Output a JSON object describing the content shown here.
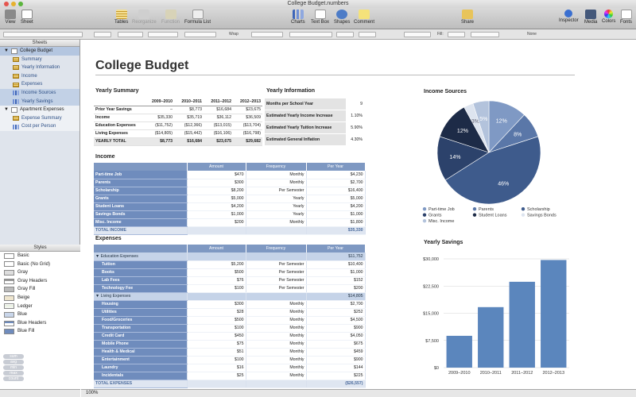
{
  "window": {
    "title": "College Budget.numbers"
  },
  "toolbar": {
    "view": "View",
    "sheet": "Sheet",
    "tables": "Tables",
    "reorganize": "Reorganize",
    "function": "Function",
    "formula_list": "Formula List",
    "charts": "Charts",
    "text_box": "Text Box",
    "shapes": "Shapes",
    "comment": "Comment",
    "share": "Share",
    "inspector": "Inspector",
    "media": "Media",
    "colors": "Colors",
    "fonts": "Fonts"
  },
  "formatbar": {
    "wrap": "Wrap",
    "fill": "Fill:",
    "none": "None"
  },
  "sidebar": {
    "sheets_header": "Sheets",
    "sheets": [
      {
        "label": "College Budget",
        "items": [
          "Summary",
          "Yearly Information",
          "Income",
          "Expenses",
          "Income Sources",
          "Yearly Savings"
        ]
      },
      {
        "label": "Apartment Expenses",
        "items": [
          "Expense Summary",
          "Cost per Person"
        ]
      }
    ],
    "styles_header": "Styles",
    "styles": [
      "Basic",
      "Basic (No Grid)",
      "Gray",
      "Gray Headers",
      "Gray Fill",
      "Beige",
      "Ledger",
      "Blue",
      "Blue Headers",
      "Blue Fill"
    ],
    "quick_calc": [
      "sum",
      "avg",
      "min",
      "max",
      "count"
    ],
    "zoom": "100%"
  },
  "colors": {
    "accent_blue": "#7e98c2",
    "dark_blue": "#1f3156",
    "selection": "#b4c6e0"
  },
  "page": {
    "title": "College Budget"
  },
  "yearly_summary": {
    "title": "Yearly Summary",
    "headers": [
      "",
      "2009–2010",
      "2010–2011",
      "2011–2012",
      "2012–2013"
    ],
    "rows": [
      [
        "Prior Year Savings",
        "–",
        "$8,773",
        "$16,684",
        "$23,675"
      ],
      [
        "Income",
        "$35,330",
        "$35,719",
        "$36,112",
        "$36,509"
      ],
      [
        "Education Expenses",
        "($11,752)",
        "($12,366)",
        "($13,015)",
        "($13,704)"
      ],
      [
        "Living Expenses",
        "($14,805)",
        "($15,442)",
        "($16,106)",
        "($16,798)"
      ]
    ],
    "total": [
      "YEARLY TOTAL",
      "$8,773",
      "$16,684",
      "$23,675",
      "$29,682"
    ]
  },
  "yearly_information": {
    "title": "Yearly Information",
    "rows": [
      [
        "Months per School Year",
        "9"
      ],
      [
        "Estimated Yearly Income Increase",
        "1.10%"
      ],
      [
        "Estimated Yearly Tuition Increase",
        "5.90%"
      ],
      [
        "Estimated General Inflation",
        "4.30%"
      ]
    ]
  },
  "income": {
    "title": "Income",
    "headers": [
      "",
      "Amount",
      "Frequency",
      "Per Year"
    ],
    "rows": [
      [
        "Part-time Job",
        "$470",
        "Monthly",
        "$4,230"
      ],
      [
        "Parents",
        "$300",
        "Monthly",
        "$2,700"
      ],
      [
        "Scholarship",
        "$8,200",
        "Per Semester",
        "$16,400"
      ],
      [
        "Grants",
        "$5,000",
        "Yearly",
        "$5,000"
      ],
      [
        "Student Loans",
        "$4,200",
        "Yearly",
        "$4,200"
      ],
      [
        "Savings Bonds",
        "$1,000",
        "Yearly",
        "$1,000"
      ],
      [
        "Misc. Income",
        "$200",
        "Monthly",
        "$1,800"
      ]
    ],
    "total": [
      "TOTAL INCOME",
      "",
      "",
      "$35,330"
    ]
  },
  "expenses": {
    "title": "Expenses",
    "headers": [
      "",
      "Amount",
      "Frequency",
      "Per Year"
    ],
    "groups": [
      {
        "label": "Education Expenses",
        "total": "$11,752",
        "rows": [
          [
            "Tuition",
            "$5,200",
            "Per Semester",
            "$10,400"
          ],
          [
            "Books",
            "$500",
            "Per Semester",
            "$1,000"
          ],
          [
            "Lab Fees",
            "$76",
            "Per Semester",
            "$152"
          ],
          [
            "Technology Fee",
            "$100",
            "Per Semester",
            "$200"
          ]
        ]
      },
      {
        "label": "Living Expenses",
        "total": "$14,805",
        "rows": [
          [
            "Housing",
            "$300",
            "Monthly",
            "$2,700"
          ],
          [
            "Utilities",
            "$28",
            "Monthly",
            "$252"
          ],
          [
            "Food/Groceries",
            "$500",
            "Monthly",
            "$4,500"
          ],
          [
            "Transportation",
            "$100",
            "Monthly",
            "$900"
          ],
          [
            "Credit Card",
            "$450",
            "Monthly",
            "$4,050"
          ],
          [
            "Mobile Phone",
            "$75",
            "Monthly",
            "$675"
          ],
          [
            "Health & Medical",
            "$51",
            "Monthly",
            "$459"
          ],
          [
            "Entertainment",
            "$100",
            "Monthly",
            "$900"
          ],
          [
            "Laundry",
            "$16",
            "Monthly",
            "$144"
          ],
          [
            "Incidentals",
            "$25",
            "Monthly",
            "$225"
          ]
        ]
      }
    ],
    "total": [
      "TOTAL EXPENSES",
      "",
      "",
      "($26,557)"
    ]
  },
  "chart_data": [
    {
      "type": "pie",
      "title": "Income Sources",
      "categories": [
        "Part-time Job",
        "Parents",
        "Scholarship",
        "Grants",
        "Student Loans",
        "Savings Bonds",
        "Misc. Income"
      ],
      "values": [
        12,
        8,
        46,
        14,
        12,
        3,
        5
      ],
      "labels": [
        "12%",
        "8%",
        "46%",
        "14%",
        "12%",
        "3%",
        "5%"
      ],
      "colors": [
        "#7f99c4",
        "#5a77a8",
        "#3e5b8c",
        "#2c426b",
        "#1d2b47",
        "#dde4ef",
        "#b3c3dc"
      ],
      "legend": "bottom"
    },
    {
      "type": "bar",
      "title": "Yearly Savings",
      "categories": [
        "2009–2010",
        "2010–2011",
        "2011–2012",
        "2012–2013"
      ],
      "values": [
        8773,
        16684,
        23675,
        29682
      ],
      "ylim": [
        0,
        30000
      ],
      "yticks": [
        "$0",
        "$7,500",
        "$15,000",
        "$22,500",
        "$30,000"
      ],
      "grid": true,
      "color": "#5b86bd"
    }
  ]
}
